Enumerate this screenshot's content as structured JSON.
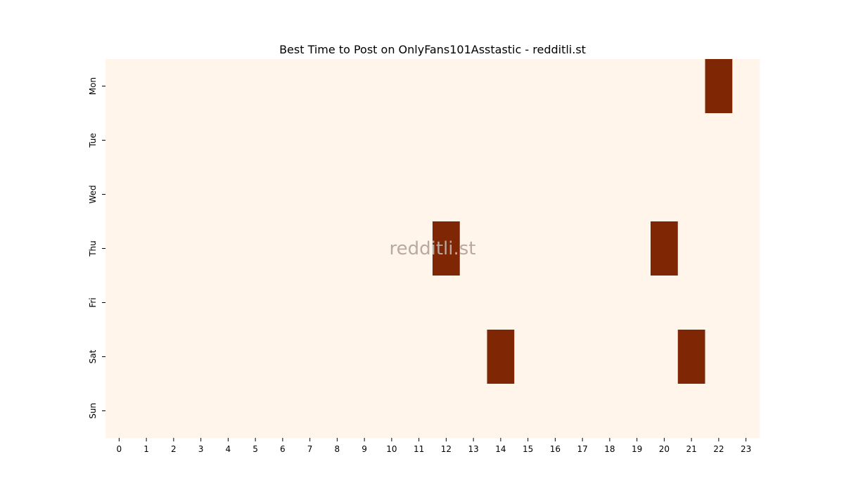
{
  "chart_data": {
    "type": "heatmap",
    "title": "Best Time to Post on OnlyFans101Asstastic - redditli.st",
    "xlabel": "",
    "ylabel": "",
    "x_categories": [
      "0",
      "1",
      "2",
      "3",
      "4",
      "5",
      "6",
      "7",
      "8",
      "9",
      "10",
      "11",
      "12",
      "13",
      "14",
      "15",
      "16",
      "17",
      "18",
      "19",
      "20",
      "21",
      "22",
      "23"
    ],
    "y_categories": [
      "Mon",
      "Tue",
      "Wed",
      "Thu",
      "Fri",
      "Sat",
      "Sun"
    ],
    "values": [
      [
        0,
        0,
        0,
        0,
        0,
        0,
        0,
        0,
        0,
        0,
        0,
        0,
        0,
        0,
        0,
        0,
        0,
        0,
        0,
        0,
        0,
        0,
        1,
        0
      ],
      [
        0,
        0,
        0,
        0,
        0,
        0,
        0,
        0,
        0,
        0,
        0,
        0,
        0,
        0,
        0,
        0,
        0,
        0,
        0,
        0,
        0,
        0,
        0,
        0
      ],
      [
        0,
        0,
        0,
        0,
        0,
        0,
        0,
        0,
        0,
        0,
        0,
        0,
        0,
        0,
        0,
        0,
        0,
        0,
        0,
        0,
        0,
        0,
        0,
        0
      ],
      [
        0,
        0,
        0,
        0,
        0,
        0,
        0,
        0,
        0,
        0,
        0,
        0,
        1,
        0,
        0,
        0,
        0,
        0,
        0,
        0,
        1,
        0,
        0,
        0
      ],
      [
        0,
        0,
        0,
        0,
        0,
        0,
        0,
        0,
        0,
        0,
        0,
        0,
        0,
        0,
        0,
        0,
        0,
        0,
        0,
        0,
        0,
        0,
        0,
        0
      ],
      [
        0,
        0,
        0,
        0,
        0,
        0,
        0,
        0,
        0,
        0,
        0,
        0,
        0,
        0,
        1,
        0,
        0,
        0,
        0,
        0,
        0,
        1,
        0,
        0
      ],
      [
        0,
        0,
        0,
        0,
        0,
        0,
        0,
        0,
        0,
        0,
        0,
        0,
        0,
        0,
        0,
        0,
        0,
        0,
        0,
        0,
        0,
        0,
        0,
        0
      ]
    ],
    "colors": {
      "low": "#fff5eb",
      "high": "#7f2704"
    },
    "watermark": "redditli.st",
    "grid": false,
    "legend": "none"
  }
}
